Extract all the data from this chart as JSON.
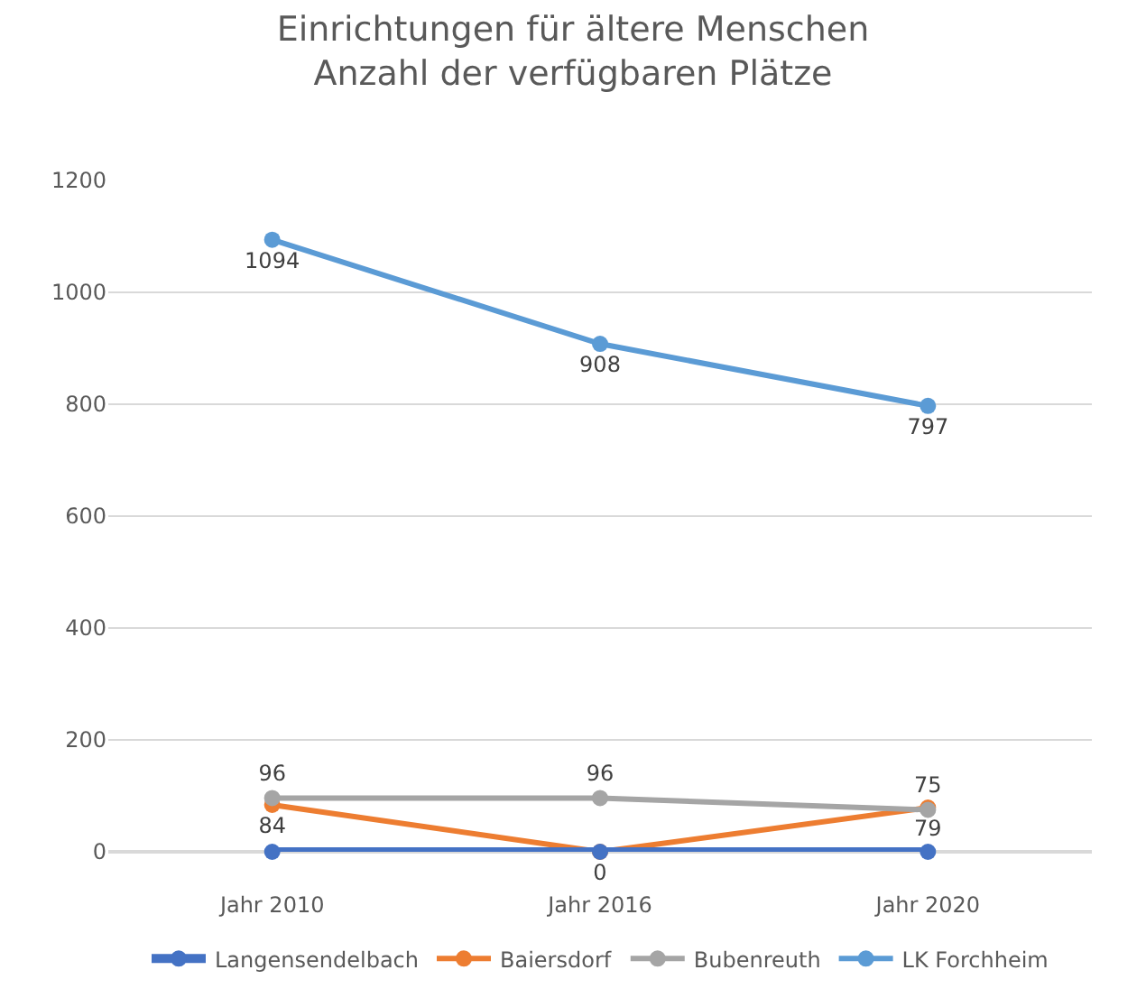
{
  "chart_data": {
    "type": "line",
    "title": "Einrichtungen für ältere Menschen\nAnzahl der verfügbaren Plätze",
    "categories": [
      "Jahr 2010",
      "Jahr 2016",
      "Jahr 2020"
    ],
    "series": [
      {
        "name": "Langensendelbach",
        "color": "#4472c4",
        "values": [
          0,
          0,
          0
        ],
        "value_labels": [
          null,
          null,
          null
        ]
      },
      {
        "name": "Baiersdorf",
        "color": "#ed7d31",
        "values": [
          84,
          0,
          79
        ],
        "value_labels": [
          "84",
          "0",
          "79"
        ]
      },
      {
        "name": "Bubenreuth",
        "color": "#a5a5a5",
        "values": [
          96,
          96,
          75
        ],
        "value_labels": [
          "96",
          "96",
          "75"
        ]
      },
      {
        "name": "LK Forchheim",
        "color": "#5b9bd5",
        "values": [
          1094,
          908,
          797
        ],
        "value_labels": [
          "1094",
          "908",
          "797"
        ]
      }
    ],
    "ylim": [
      0,
      1200
    ],
    "yticks": [
      0,
      200,
      400,
      600,
      800,
      1000,
      1200
    ],
    "grid": "y",
    "legend": "bottom",
    "marker": "circle",
    "line_style": "solid"
  }
}
